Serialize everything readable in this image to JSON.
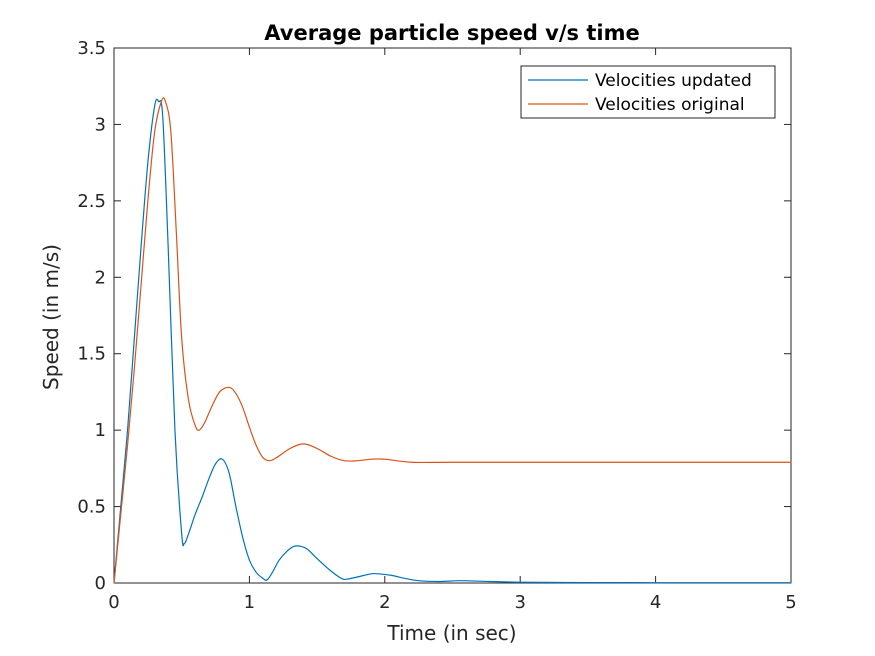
{
  "chart_data": {
    "type": "line",
    "title": "Average particle speed v/s time",
    "xlabel": "Time (in sec)",
    "ylabel": "Speed (in m/s)",
    "xlim": [
      0,
      5
    ],
    "ylim": [
      0,
      3.5
    ],
    "xticks": [
      0,
      1,
      2,
      3,
      4,
      5
    ],
    "yticks": [
      0,
      0.5,
      1,
      1.5,
      2,
      2.5,
      3,
      3.5
    ],
    "xtick_labels": [
      "0",
      "1",
      "2",
      "3",
      "4",
      "5"
    ],
    "ytick_labels": [
      "0",
      "0.5",
      "1",
      "1.5",
      "2",
      "2.5",
      "3",
      "3.5"
    ],
    "grid": false,
    "legend_position": "top-right",
    "series": [
      {
        "name": "Velocities updated",
        "color": "#0072BD",
        "x": [
          0,
          0.05,
          0.1,
          0.15,
          0.2,
          0.25,
          0.3,
          0.33,
          0.36,
          0.4,
          0.45,
          0.5,
          0.52,
          0.55,
          0.6,
          0.65,
          0.7,
          0.75,
          0.8,
          0.85,
          0.9,
          0.95,
          1.0,
          1.05,
          1.1,
          1.13,
          1.17,
          1.22,
          1.28,
          1.33,
          1.38,
          1.43,
          1.5,
          1.6,
          1.68,
          1.72,
          1.8,
          1.9,
          1.95,
          2.05,
          2.15,
          2.25,
          2.4,
          2.55,
          2.7,
          3.0,
          3.5,
          4.0,
          4.5,
          5.0
        ],
        "y": [
          0,
          0.5,
          1.0,
          1.6,
          2.2,
          2.75,
          3.12,
          3.15,
          3.05,
          2.2,
          1.0,
          0.32,
          0.26,
          0.32,
          0.45,
          0.56,
          0.68,
          0.78,
          0.81,
          0.72,
          0.5,
          0.3,
          0.15,
          0.07,
          0.03,
          0.02,
          0.07,
          0.15,
          0.21,
          0.24,
          0.24,
          0.22,
          0.16,
          0.08,
          0.03,
          0.025,
          0.04,
          0.06,
          0.06,
          0.05,
          0.03,
          0.015,
          0.01,
          0.015,
          0.012,
          0.005,
          0.003,
          0.002,
          0.002,
          0.002
        ]
      },
      {
        "name": "Velocities original",
        "color": "#D95319",
        "x": [
          0,
          0.05,
          0.1,
          0.15,
          0.2,
          0.25,
          0.3,
          0.35,
          0.38,
          0.42,
          0.46,
          0.5,
          0.55,
          0.6,
          0.63,
          0.67,
          0.72,
          0.78,
          0.85,
          0.9,
          0.95,
          1.0,
          1.05,
          1.1,
          1.15,
          1.2,
          1.3,
          1.4,
          1.5,
          1.6,
          1.7,
          1.8,
          1.9,
          2.0,
          2.2,
          2.5,
          3.0,
          3.5,
          4.0,
          4.5,
          5.0
        ],
        "y": [
          0,
          0.45,
          0.9,
          1.4,
          1.95,
          2.5,
          2.95,
          3.15,
          3.15,
          2.95,
          2.3,
          1.6,
          1.2,
          1.03,
          1.0,
          1.05,
          1.15,
          1.25,
          1.28,
          1.24,
          1.15,
          1.02,
          0.9,
          0.82,
          0.8,
          0.82,
          0.88,
          0.91,
          0.88,
          0.83,
          0.8,
          0.8,
          0.81,
          0.81,
          0.79,
          0.79,
          0.79,
          0.79,
          0.79,
          0.79,
          0.79
        ]
      }
    ]
  }
}
